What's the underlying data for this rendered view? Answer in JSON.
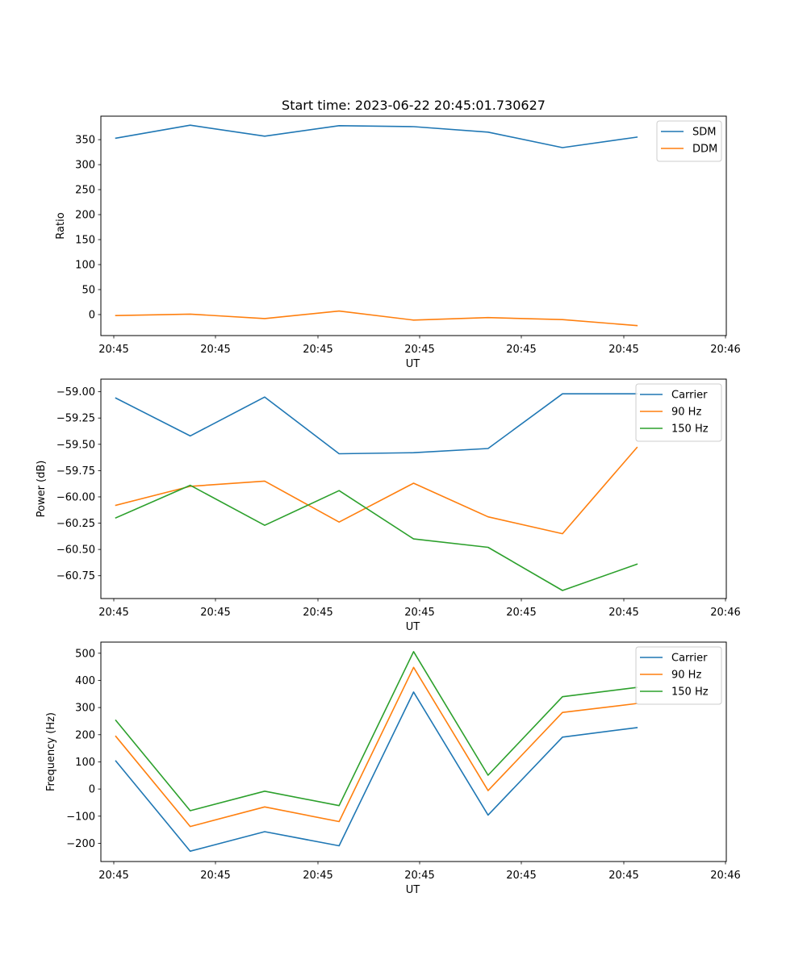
{
  "chart_data": [
    {
      "type": "line",
      "title": "Start time: 2023-06-22 20:45:01.730627",
      "xlabel": "UT",
      "ylabel": "Ratio",
      "x": [
        1,
        2,
        3,
        4,
        5,
        6,
        7,
        8
      ],
      "xlim": [
        0.8,
        9.2
      ],
      "xticks": [
        "20:45",
        "20:45",
        "20:45",
        "20:45",
        "20:45",
        "20:45",
        "20:46"
      ],
      "ylim": [
        -42,
        397
      ],
      "yticks": [
        0,
        50,
        100,
        150,
        200,
        250,
        300,
        350
      ],
      "ytick_labels": [
        "0",
        "50",
        "100",
        "150",
        "200",
        "250",
        "300",
        "350"
      ],
      "legend": "top-right",
      "series": [
        {
          "name": "SDM",
          "color": "#1f77b4",
          "values": [
            353,
            379,
            357,
            378,
            376,
            365,
            334,
            355
          ]
        },
        {
          "name": "DDM",
          "color": "#ff7f0e",
          "values": [
            -2,
            1,
            -8,
            7,
            -11,
            -6,
            -10,
            -22
          ]
        }
      ]
    },
    {
      "type": "line",
      "title": "",
      "xlabel": "UT",
      "ylabel": "Power (dB)",
      "x": [
        1,
        2,
        3,
        4,
        5,
        6,
        7,
        8
      ],
      "xlim": [
        0.8,
        9.2
      ],
      "xticks": [
        "20:45",
        "20:45",
        "20:45",
        "20:45",
        "20:45",
        "20:45",
        "20:46"
      ],
      "ylim": [
        -60.967,
        -58.88
      ],
      "yticks": [
        -59.0,
        -59.25,
        -59.5,
        -59.75,
        -60.0,
        -60.25,
        -60.5,
        -60.75
      ],
      "ytick_labels": [
        "−59.00",
        "−59.25",
        "−59.50",
        "−59.75",
        "−60.00",
        "−60.25",
        "−60.50",
        "−60.75"
      ],
      "legend": "top-right",
      "series": [
        {
          "name": "Carrier",
          "color": "#1f77b4",
          "values": [
            -59.06,
            -59.42,
            -59.05,
            -59.59,
            -59.58,
            -59.54,
            -59.02,
            -59.02
          ]
        },
        {
          "name": "90 Hz",
          "color": "#ff7f0e",
          "values": [
            -60.08,
            -59.9,
            -59.85,
            -60.24,
            -59.87,
            -60.19,
            -60.35,
            -59.53
          ]
        },
        {
          "name": "150 Hz",
          "color": "#2ca02c",
          "values": [
            -60.2,
            -59.89,
            -60.27,
            -59.94,
            -60.4,
            -60.48,
            -60.89,
            -60.64
          ]
        }
      ]
    },
    {
      "type": "line",
      "title": "",
      "xlabel": "UT",
      "ylabel": "Frequency (Hz)",
      "x": [
        1,
        2,
        3,
        4,
        5,
        6,
        7,
        8
      ],
      "xlim": [
        0.8,
        9.2
      ],
      "xticks": [
        "20:45",
        "20:45",
        "20:45",
        "20:45",
        "20:45",
        "20:45",
        "20:46"
      ],
      "ylim": [
        -267,
        541
      ],
      "yticks": [
        -200,
        -100,
        0,
        100,
        200,
        300,
        400,
        500
      ],
      "ytick_labels": [
        "−200",
        "−100",
        "0",
        "100",
        "200",
        "300",
        "400",
        "500"
      ],
      "legend": "top-right",
      "series": [
        {
          "name": "Carrier",
          "color": "#1f77b4",
          "values": [
            103,
            -229,
            -157,
            -209,
            357,
            -96,
            191,
            226
          ]
        },
        {
          "name": "90 Hz",
          "color": "#ff7f0e",
          "values": [
            194,
            -138,
            -66,
            -120,
            448,
            -6,
            282,
            315
          ]
        },
        {
          "name": "150 Hz",
          "color": "#2ca02c",
          "values": [
            253,
            -80,
            -8,
            -61,
            506,
            51,
            340,
            374
          ]
        }
      ]
    }
  ]
}
